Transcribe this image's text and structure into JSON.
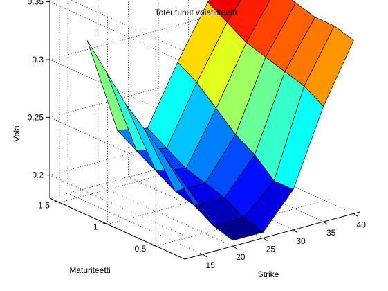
{
  "chart_data": {
    "type": "surface3d",
    "title": "Toteutunut volatiliteetti",
    "xlabel": "Strike",
    "ylabel": "Maturiteetti",
    "zlabel": "Vola",
    "xlim": [
      12,
      41
    ],
    "ylim": [
      0.2,
      1.6
    ],
    "zlim": [
      0.18,
      0.36
    ],
    "x_ticks": [
      "15",
      "20",
      "25",
      "30",
      "35",
      "40"
    ],
    "y_ticks": [
      "0.5",
      "1",
      "1.5"
    ],
    "z_ticks": [
      "0.2",
      "0.25",
      "0.3",
      "0.35"
    ],
    "grid": true,
    "colormap": "jet",
    "strikes": [
      15,
      20,
      25,
      30,
      35,
      40
    ],
    "maturities": [
      0.2,
      0.4,
      0.6,
      0.8,
      1.0,
      1.2,
      1.4
    ],
    "vola": [
      [
        0.22,
        0.185,
        0.185,
        0.215,
        0.28,
        0.33
      ],
      [
        0.235,
        0.19,
        0.19,
        0.215,
        0.29,
        0.335
      ],
      [
        0.25,
        0.2,
        0.2,
        0.23,
        0.295,
        0.335
      ],
      [
        0.265,
        0.205,
        0.205,
        0.24,
        0.3,
        0.34
      ],
      [
        0.28,
        0.215,
        0.21,
        0.255,
        0.305,
        0.345
      ],
      [
        0.3,
        0.225,
        0.22,
        0.27,
        0.315,
        0.35
      ],
      [
        0.32,
        0.235,
        0.23,
        0.28,
        0.325,
        0.355
      ]
    ]
  }
}
